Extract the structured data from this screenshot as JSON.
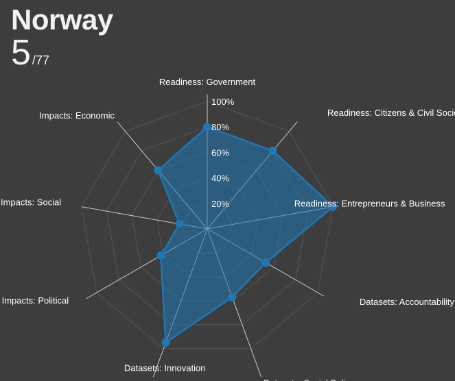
{
  "header": {
    "country": "Norway",
    "rank": "5",
    "rank_total": "/77"
  },
  "colors": {
    "background": "#3d3d3d",
    "series": "#1f77b4",
    "grid": "#555555",
    "spoke": "#cccccc"
  },
  "chart_data": {
    "type": "radar",
    "axes": [
      "Readiness: Government",
      "Readiness: Citizens & Civil Society",
      "Readiness: Entrepreneurs & Business",
      "Datasets: Accountability",
      "Datasets: Social Policy",
      "Datasets: Innovation",
      "Impacts: Political",
      "Impacts: Social",
      "Impacts: Economic"
    ],
    "values": [
      80,
      80,
      100,
      53,
      57,
      95,
      42,
      22,
      60
    ],
    "radial_ticks": [
      "20%",
      "40%",
      "60%",
      "80%",
      "100%"
    ],
    "radial_tick_values": [
      20,
      40,
      60,
      80,
      100
    ],
    "range": [
      0,
      100
    ],
    "grid": true
  }
}
